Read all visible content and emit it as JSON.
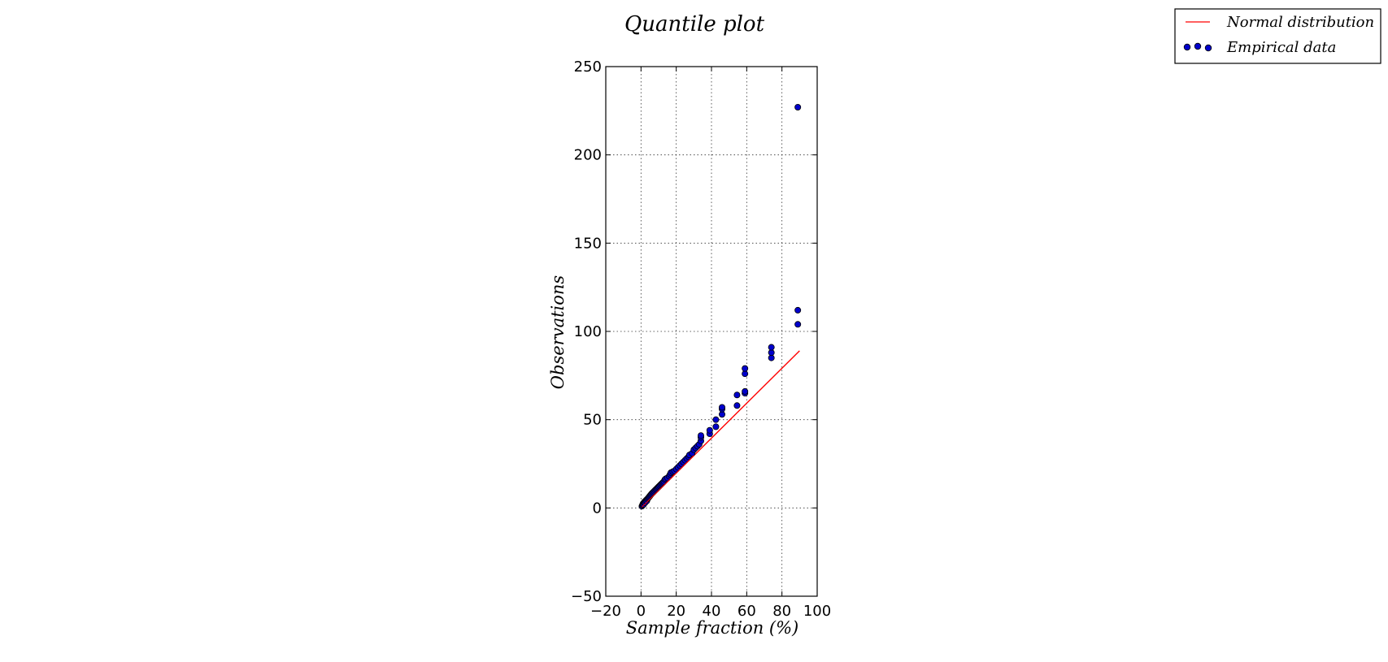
{
  "chart_data": {
    "type": "scatter",
    "title": "Quantile plot",
    "xlabel": "Sample fraction (%)",
    "ylabel": "Observations",
    "xlim": [
      -20,
      100
    ],
    "ylim": [
      -50,
      250
    ],
    "xticks": [
      -20,
      0,
      20,
      40,
      60,
      80,
      100
    ],
    "yticks": [
      -50,
      0,
      50,
      100,
      150,
      200,
      250
    ],
    "xtick_labels": [
      "−20",
      "0",
      "20",
      "40",
      "60",
      "80",
      "100"
    ],
    "ytick_labels": [
      "−50",
      "0",
      "50",
      "100",
      "150",
      "200",
      "250"
    ],
    "grid": true,
    "legend": {
      "position": "top-right",
      "entries": [
        "Normal distribution",
        "Empirical data"
      ]
    },
    "series": [
      {
        "name": "Normal distribution",
        "kind": "line",
        "color": "#ff0000",
        "x": [
          0.5,
          90
        ],
        "y": [
          0.5,
          89
        ]
      },
      {
        "name": "Empirical data",
        "kind": "scatter",
        "color": "#0000cc",
        "edgecolor": "#000000",
        "points": [
          [
            0.5,
            1
          ],
          [
            0.8,
            1.5
          ],
          [
            1,
            2
          ],
          [
            1.2,
            2.5
          ],
          [
            1.5,
            2
          ],
          [
            1.8,
            3
          ],
          [
            2,
            3.5
          ],
          [
            2.3,
            3
          ],
          [
            2.6,
            4
          ],
          [
            3,
            4.5
          ],
          [
            3.3,
            4
          ],
          [
            3.6,
            5
          ],
          [
            4,
            5.5
          ],
          [
            4.4,
            6
          ],
          [
            4.8,
            6.5
          ],
          [
            5.2,
            7
          ],
          [
            5.6,
            7.5
          ],
          [
            6,
            8
          ],
          [
            6.5,
            8.5
          ],
          [
            7,
            9
          ],
          [
            7.5,
            9.5
          ],
          [
            8,
            10
          ],
          [
            8.5,
            10.5
          ],
          [
            9,
            11
          ],
          [
            9.5,
            11.5
          ],
          [
            10,
            12
          ],
          [
            10.5,
            12.5
          ],
          [
            11,
            13
          ],
          [
            11.5,
            13.5
          ],
          [
            12,
            14
          ],
          [
            12.5,
            14.5
          ],
          [
            13,
            15
          ],
          [
            13.5,
            16
          ],
          [
            14,
            16.5
          ],
          [
            15,
            17
          ],
          [
            16,
            18
          ],
          [
            16.5,
            19
          ],
          [
            17,
            20
          ],
          [
            18,
            20.5
          ],
          [
            19,
            21
          ],
          [
            20,
            22
          ],
          [
            21,
            23
          ],
          [
            22,
            24
          ],
          [
            23,
            25
          ],
          [
            24,
            26
          ],
          [
            25,
            27
          ],
          [
            26,
            28
          ],
          [
            27,
            29
          ],
          [
            27.5,
            30
          ],
          [
            29,
            31
          ],
          [
            30,
            33
          ],
          [
            31,
            34
          ],
          [
            32,
            35
          ],
          [
            33,
            36
          ],
          [
            34,
            38
          ],
          [
            34,
            40
          ],
          [
            34,
            41
          ],
          [
            39,
            42
          ],
          [
            39,
            44
          ],
          [
            42.5,
            46
          ],
          [
            42.5,
            50
          ],
          [
            46,
            53
          ],
          [
            46,
            56
          ],
          [
            46,
            57
          ],
          [
            54.5,
            58
          ],
          [
            54.5,
            64
          ],
          [
            59,
            65
          ],
          [
            59,
            66
          ],
          [
            59,
            76
          ],
          [
            59,
            79
          ],
          [
            74,
            85
          ],
          [
            74,
            88
          ],
          [
            74,
            91
          ],
          [
            89,
            104
          ],
          [
            89,
            112
          ],
          [
            89,
            227
          ]
        ]
      }
    ]
  }
}
